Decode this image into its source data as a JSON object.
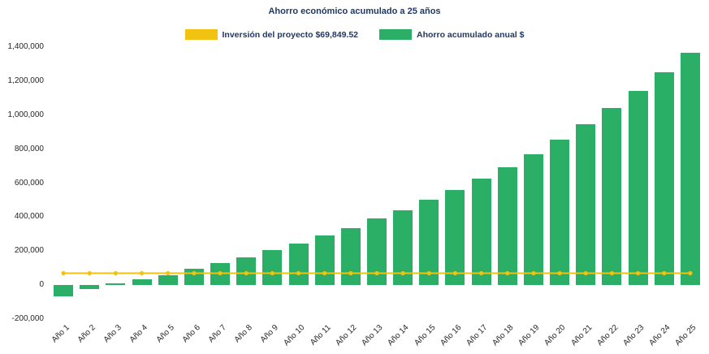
{
  "title": "Ahorro económico acumulado a 25 años",
  "legend": [
    {
      "label": "Inversión del proyecto $69,849.52",
      "color": "#F2C211",
      "series": "line"
    },
    {
      "label": "Ahorro acumulado anual $",
      "color": "#2BAE66",
      "series": "bar"
    }
  ],
  "chart_data": {
    "type": "bar",
    "title": "Ahorro económico acumulado a 25 años",
    "categories": [
      "Año 1",
      "Año 2",
      "Año 3",
      "Año 4",
      "Año 5",
      "Año 6",
      "Año 7",
      "Año 8",
      "Año 9",
      "Año 10",
      "Año 11",
      "Año 12",
      "Año 13",
      "Año 14",
      "Año 15",
      "Año 16",
      "Año 17",
      "Año 18",
      "Año 19",
      "Año 20",
      "Año 21",
      "Año 22",
      "Año 23",
      "Año 24",
      "Año 25"
    ],
    "series": [
      {
        "name": "Ahorro acumulado anual $",
        "type": "bar",
        "color": "#2BAE66",
        "values": [
          -65000,
          -25000,
          10000,
          35000,
          60000,
          95000,
          130000,
          165000,
          205000,
          245000,
          290000,
          335000,
          390000,
          440000,
          500000,
          560000,
          625000,
          695000,
          770000,
          855000,
          945000,
          1040000,
          1140000,
          1250000,
          1365000
        ]
      },
      {
        "name": "Inversión del proyecto $69,849.52",
        "type": "line",
        "color": "#F2C211",
        "constant_value": 69849.52
      }
    ],
    "y_axis": {
      "min": -200000,
      "max": 1400000,
      "step": 200000,
      "ticks": [
        {
          "value": 1400000,
          "label": "1,400,000"
        },
        {
          "value": 1200000,
          "label": "1,200,000"
        },
        {
          "value": 1000000,
          "label": "1,000,000"
        },
        {
          "value": 800000,
          "label": "800,000"
        },
        {
          "value": 600000,
          "label": "600,000"
        },
        {
          "value": 400000,
          "label": "400,000"
        },
        {
          "value": 200000,
          "label": "200,000"
        },
        {
          "value": 0,
          "label": "0"
        },
        {
          "value": -200000,
          "label": "-200,000"
        }
      ]
    },
    "grid": false,
    "legend_position": "top",
    "background": "#FFFFFF"
  }
}
